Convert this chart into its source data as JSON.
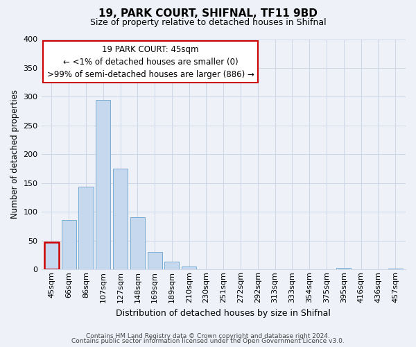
{
  "title": "19, PARK COURT, SHIFNAL, TF11 9BD",
  "subtitle": "Size of property relative to detached houses in Shifnal",
  "xlabel": "Distribution of detached houses by size in Shifnal",
  "ylabel": "Number of detached properties",
  "bar_labels": [
    "45sqm",
    "66sqm",
    "86sqm",
    "107sqm",
    "127sqm",
    "148sqm",
    "169sqm",
    "189sqm",
    "210sqm",
    "230sqm",
    "251sqm",
    "272sqm",
    "292sqm",
    "313sqm",
    "333sqm",
    "354sqm",
    "375sqm",
    "395sqm",
    "416sqm",
    "436sqm",
    "457sqm"
  ],
  "bar_values": [
    47,
    86,
    144,
    295,
    175,
    91,
    30,
    14,
    5,
    0,
    0,
    0,
    0,
    0,
    0,
    0,
    0,
    3,
    0,
    0,
    2
  ],
  "bar_color": "#c5d8ed",
  "bar_edge_color": "#7aadd4",
  "ylim": [
    0,
    400
  ],
  "yticks": [
    0,
    50,
    100,
    150,
    200,
    250,
    300,
    350,
    400
  ],
  "annotation_title": "19 PARK COURT: 45sqm",
  "annotation_line1": "← <1% of detached houses are smaller (0)",
  "annotation_line2": ">99% of semi-detached houses are larger (886) →",
  "annotation_box_color": "#ffffff",
  "annotation_box_edge": "#cc0000",
  "footer1": "Contains HM Land Registry data © Crown copyright and database right 2024.",
  "footer2": "Contains public sector information licensed under the Open Government Licence v3.0.",
  "highlight_bar_index": 0,
  "highlight_bar_color": "#cc0000",
  "background_color": "#eef2f8",
  "grid_color": "#d0d8e8",
  "title_fontsize": 11,
  "subtitle_fontsize": 9,
  "ylabel_fontsize": 8.5,
  "xlabel_fontsize": 9,
  "tick_fontsize": 8,
  "annotation_fontsize": 8.5,
  "footer_fontsize": 6.5
}
